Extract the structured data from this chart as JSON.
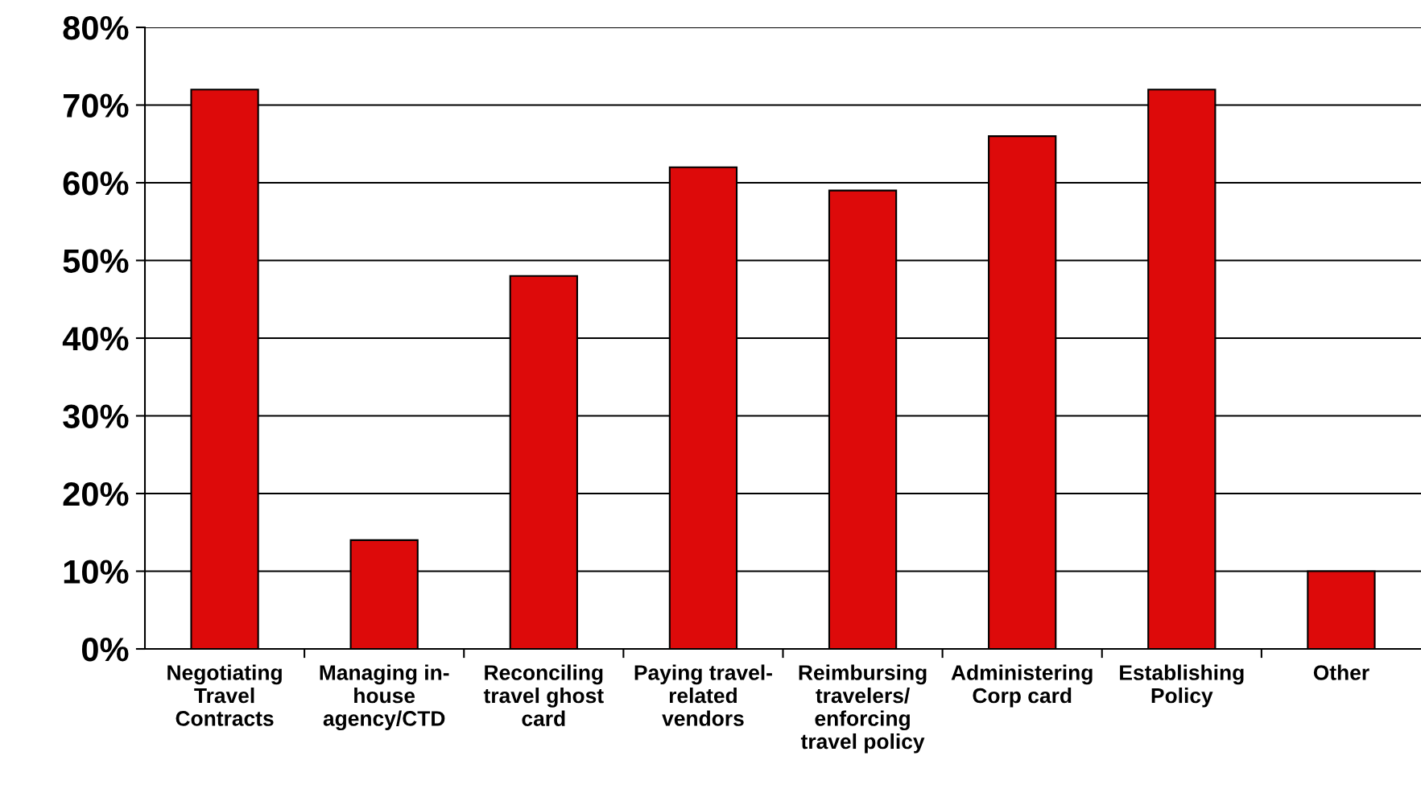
{
  "chart_data": {
    "type": "bar",
    "categories": [
      "Negotiating\nTravel\nContracts",
      "Managing in-\nhouse\nagency/CTD",
      "Reconciling\ntravel ghost\ncard",
      "Paying travel-\nrelated\nvendors",
      "Reimbursing\ntravelers/\nenforcing\ntravel policy",
      "Administering\nCorp card",
      "Establishing\nPolicy",
      "Other"
    ],
    "values": [
      72,
      14,
      48,
      62,
      59,
      66,
      72,
      10
    ],
    "color": "#dd0a0a",
    "ylim": [
      0,
      80
    ],
    "yticks": [
      {
        "value": 0,
        "label": "0%"
      },
      {
        "value": 10,
        "label": "10%"
      },
      {
        "value": 20,
        "label": "20%"
      },
      {
        "value": 30,
        "label": "30%"
      },
      {
        "value": 40,
        "label": "40%"
      },
      {
        "value": 50,
        "label": "50%"
      },
      {
        "value": 60,
        "label": "60%"
      },
      {
        "value": 70,
        "label": "70%"
      },
      {
        "value": 80,
        "label": "80%"
      }
    ],
    "grid": "y",
    "legend": false
  }
}
